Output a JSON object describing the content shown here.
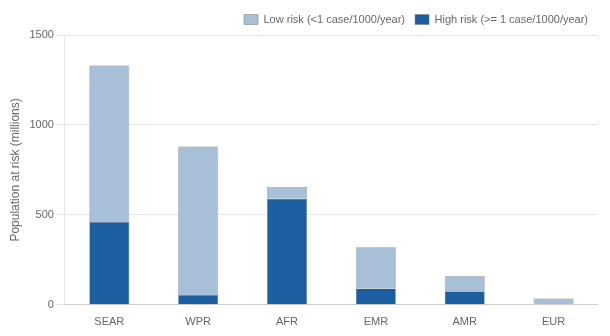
{
  "chart_data": {
    "type": "bar",
    "stacked": true,
    "categories": [
      "SEAR",
      "WPR",
      "AFR",
      "EMR",
      "AMR",
      "EUR"
    ],
    "series": [
      {
        "name": "High risk (>= 1 case/1000/year)",
        "color": "#1b5fa0",
        "values": [
          460,
          55,
          590,
          90,
          75,
          0
        ]
      },
      {
        "name": "Low risk (<1 case/1000/year)",
        "color": "#a8bfd8",
        "values": [
          870,
          825,
          65,
          230,
          85,
          35
        ]
      }
    ],
    "ylabel": "Population at risk (millions)",
    "ylim": [
      0,
      1500
    ],
    "yticks": [
      0,
      500,
      1000,
      1500
    ],
    "grid": true,
    "legend": "upper right"
  }
}
